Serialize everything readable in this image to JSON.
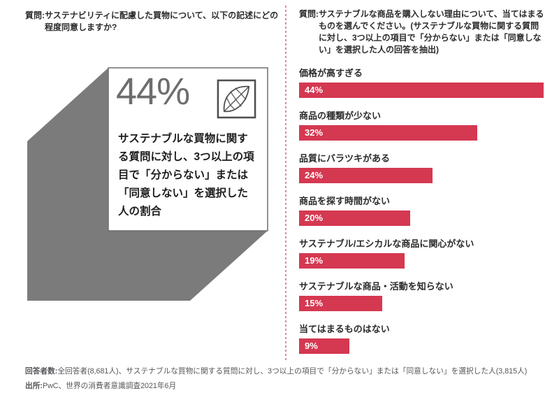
{
  "left_panel": {
    "question_label": "質問:",
    "question_text": "サステナビリティに配慮した買物について、以下の記述にどの程度同意しますか?",
    "stat_value": "44%",
    "stat_description": "サステナブルな買物に関する質問に対し、3つ以上の項目で「分からない」または「同意しない」を選択した人の割合",
    "icon": "leaf-icon"
  },
  "right_panel": {
    "question_label": "質問:",
    "question_text": "サステナブルな商品を購入しない理由について、当てはまるものを選んでください。(サステナブルな買物に関する質問に対し、3つ以上の項目で「分からない」または「同意しない」を選択した人の回答を抽出)"
  },
  "chart_data": {
    "type": "bar",
    "orientation": "horizontal",
    "categories": [
      "価格が高すぎる",
      "商品の種類が少ない",
      "品質にバラツキがある",
      "商品を探す時間がない",
      "サステナブル/エシカルな商品に関心がない",
      "サステナブルな商品・活動を知らない",
      "当てはまるものはない"
    ],
    "values": [
      44,
      32,
      24,
      20,
      19,
      15,
      9
    ],
    "value_suffix": "%",
    "xlim": [
      0,
      44
    ],
    "grid": false,
    "legend": false,
    "value_labels_inside_bars": true
  },
  "footer": {
    "respondents_label": "回答者数:",
    "respondents_text": "全回答者(8,681人)、サステナブルな買物に関する質問に対し、3つ以上の項目で「分からない」または「同意しない」を選択した人(3,815人)",
    "source_label": "出所:",
    "source_text": "PwC、世界の消費者意識調査2021年6月"
  },
  "colors": {
    "bar": "#d53851",
    "bar_value_text": "#ffffff",
    "cube_gray": "#7b7b7b",
    "stat_text": "#6d6d70",
    "divider_pink": "#d98ba0",
    "body_text": "#2b2b2b",
    "footer_text": "#55565a"
  }
}
